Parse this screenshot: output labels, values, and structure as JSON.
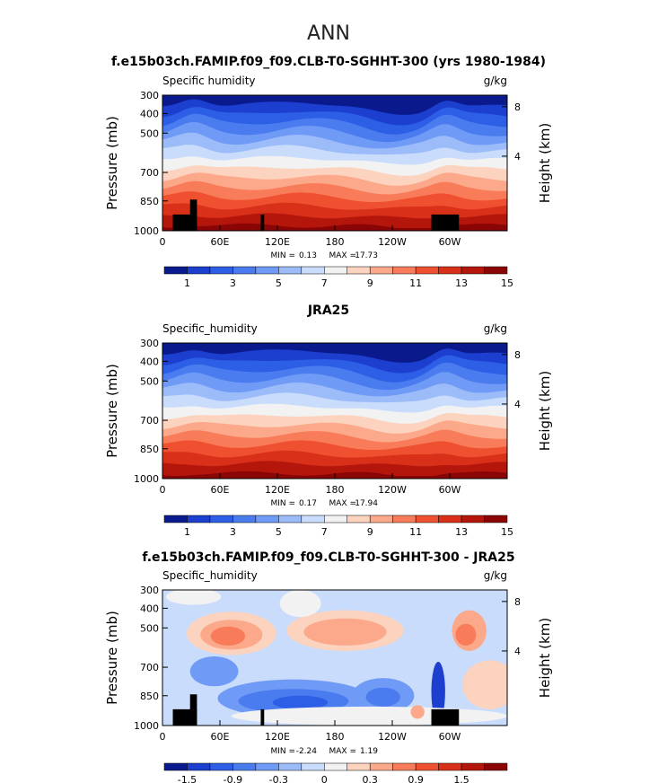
{
  "page": {
    "main_title": "ANN"
  },
  "chart_data": [
    {
      "type": "heatmap",
      "title": "f.e15b03ch.FAMIP.f09_f09.CLB-T0-SGHHT-300 (yrs 1980-1984)",
      "left_string": "Specific humidity",
      "units": "g/kg",
      "ylabel": "Pressure (mb)",
      "ylabel_right": "Height (km)",
      "xticks": [
        "0",
        "60E",
        "120E",
        "180",
        "120W",
        "60W"
      ],
      "yticks": [
        "300",
        "400",
        "500",
        "700",
        "850",
        "1000"
      ],
      "height_ticks": [
        "8",
        "4"
      ],
      "stats": {
        "min_label": "MIN =",
        "min": "0.13",
        "max_label": "MAX =",
        "max": "17.73"
      },
      "colorbar_labels": [
        "1",
        "3",
        "5",
        "7",
        "9",
        "11",
        "13",
        "15"
      ],
      "colorbar_colors": [
        "#0a1a8c",
        "#1c3fcf",
        "#2c5ee6",
        "#4a7cef",
        "#6f9af5",
        "#9cbcf9",
        "#c9dcfc",
        "#f2f2f2",
        "#fcd3be",
        "#fba98a",
        "#f97c5a",
        "#ef5030",
        "#d9301a",
        "#b5160c",
        "#8a0505"
      ],
      "field": "absolute",
      "surface": "masked"
    },
    {
      "type": "heatmap",
      "title": "JRA25",
      "left_string": "Specific_humidity",
      "units": "g/kg",
      "ylabel": "Pressure (mb)",
      "ylabel_right": "Height (km)",
      "xticks": [
        "0",
        "60E",
        "120E",
        "180",
        "120W",
        "60W"
      ],
      "yticks": [
        "300",
        "400",
        "500",
        "700",
        "850",
        "1000"
      ],
      "height_ticks": [
        "8",
        "4"
      ],
      "stats": {
        "min_label": "MIN =",
        "min": "0.17",
        "max_label": "MAX =",
        "max": "17.94"
      },
      "colorbar_labels": [
        "1",
        "3",
        "5",
        "7",
        "9",
        "11",
        "13",
        "15"
      ],
      "colorbar_colors": [
        "#0a1a8c",
        "#1c3fcf",
        "#2c5ee6",
        "#4a7cef",
        "#6f9af5",
        "#9cbcf9",
        "#c9dcfc",
        "#f2f2f2",
        "#fcd3be",
        "#fba98a",
        "#f97c5a",
        "#ef5030",
        "#d9301a",
        "#b5160c",
        "#8a0505"
      ],
      "field": "absolute",
      "surface": "none"
    },
    {
      "type": "heatmap",
      "title": "f.e15b03ch.FAMIP.f09_f09.CLB-T0-SGHHT-300 - JRA25",
      "left_string": "Specific_humidity",
      "units": "g/kg",
      "ylabel": "Pressure (mb)",
      "ylabel_right": "Height (km)",
      "xticks": [
        "0",
        "60E",
        "120E",
        "180",
        "120W",
        "60W"
      ],
      "yticks": [
        "300",
        "400",
        "500",
        "700",
        "850",
        "1000"
      ],
      "height_ticks": [
        "8",
        "4"
      ],
      "stats": {
        "min_label": "MIN =",
        "min": "-2.24",
        "max_label": "MAX =",
        "max": "1.19"
      },
      "colorbar_labels": [
        "-1.5",
        "-0.9",
        "-0.3",
        "0",
        "0.3",
        "0.9",
        "1.5"
      ],
      "colorbar_colors": [
        "#0a1a8c",
        "#1c3fcf",
        "#2c5ee6",
        "#4a7cef",
        "#6f9af5",
        "#9cbcf9",
        "#c9dcfc",
        "#f2f2f2",
        "#fcd3be",
        "#fba98a",
        "#f97c5a",
        "#ef5030",
        "#d9301a",
        "#b5160c",
        "#8a0505"
      ],
      "field": "difference",
      "surface": "masked"
    }
  ]
}
